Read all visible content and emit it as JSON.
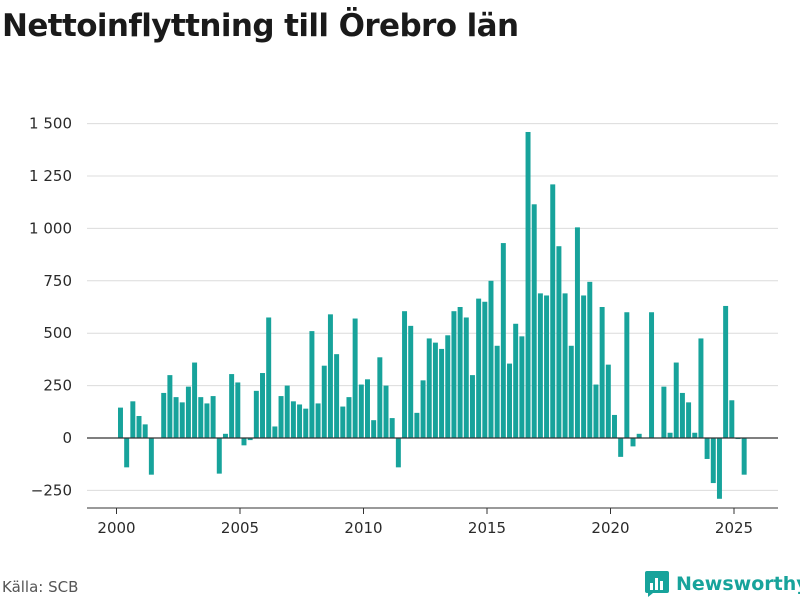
{
  "title": "Nettoinflyttning till Örebro län",
  "source": "Källa: SCB",
  "brand": {
    "name": "Newsworthy",
    "icon": "bar-chart-logo-icon"
  },
  "colors": {
    "bar": "#17a39b",
    "brand": "#17a39b",
    "grid": "#dcdcdc",
    "axis": "#333333"
  },
  "chart_data": {
    "type": "bar",
    "title": "Nettoinflyttning till Örebro län",
    "xlabel": "",
    "ylabel": "",
    "frequency": "quarterly",
    "start": "2000 Q1",
    "xlim": [
      1999.4,
      2026.8
    ],
    "ylim": [
      -300,
      1550
    ],
    "yticks": [
      -250,
      0,
      250,
      500,
      750,
      1000,
      1250,
      1500
    ],
    "ytick_labels": [
      "−250",
      "0",
      "250",
      "500",
      "750",
      "1 000",
      "1 250",
      "1 500"
    ],
    "xticks": [
      2000,
      2005,
      2010,
      2015,
      2020,
      2025
    ],
    "xtick_labels": [
      "2000",
      "2005",
      "2010",
      "2015",
      "2020",
      "2025"
    ],
    "grid": true,
    "legend": "none",
    "categories": [
      "2000 Q1",
      "2000 Q2",
      "2000 Q3",
      "2000 Q4",
      "2001 Q1",
      "2001 Q2",
      "2001 Q3",
      "2001 Q4",
      "2002 Q1",
      "2002 Q2",
      "2002 Q3",
      "2002 Q4",
      "2003 Q1",
      "2003 Q2",
      "2003 Q3",
      "2003 Q4",
      "2004 Q1",
      "2004 Q2",
      "2004 Q3",
      "2004 Q4",
      "2005 Q1",
      "2005 Q2",
      "2005 Q3",
      "2005 Q4",
      "2006 Q1",
      "2006 Q2",
      "2006 Q3",
      "2006 Q4",
      "2007 Q1",
      "2007 Q2",
      "2007 Q3",
      "2007 Q4",
      "2008 Q1",
      "2008 Q2",
      "2008 Q3",
      "2008 Q4",
      "2009 Q1",
      "2009 Q2",
      "2009 Q3",
      "2009 Q4",
      "2010 Q1",
      "2010 Q2",
      "2010 Q3",
      "2010 Q4",
      "2011 Q1",
      "2011 Q2",
      "2011 Q3",
      "2011 Q4",
      "2012 Q1",
      "2012 Q2",
      "2012 Q3",
      "2012 Q4",
      "2013 Q1",
      "2013 Q2",
      "2013 Q3",
      "2013 Q4",
      "2014 Q1",
      "2014 Q2",
      "2014 Q3",
      "2014 Q4",
      "2015 Q1",
      "2015 Q2",
      "2015 Q3",
      "2015 Q4",
      "2016 Q1",
      "2016 Q2",
      "2016 Q3",
      "2016 Q4",
      "2017 Q1",
      "2017 Q2",
      "2017 Q3",
      "2017 Q4",
      "2018 Q1",
      "2018 Q2",
      "2018 Q3",
      "2018 Q4",
      "2019 Q1",
      "2019 Q2",
      "2019 Q3",
      "2019 Q4",
      "2020 Q1",
      "2020 Q2",
      "2020 Q3",
      "2020 Q4",
      "2021 Q1",
      "2021 Q2",
      "2021 Q3",
      "2021 Q4",
      "2022 Q1",
      "2022 Q2",
      "2022 Q3",
      "2022 Q4",
      "2023 Q1",
      "2023 Q2",
      "2023 Q3",
      "2023 Q4",
      "2024 Q1",
      "2024 Q2",
      "2024 Q3",
      "2024 Q4",
      "2025 Q1",
      "2025 Q2",
      "2025 Q3"
    ],
    "values": [
      145,
      -140,
      175,
      105,
      65,
      -175,
      0,
      215,
      300,
      195,
      170,
      245,
      360,
      195,
      165,
      200,
      -170,
      20,
      305,
      265,
      -35,
      -10,
      225,
      310,
      575,
      55,
      200,
      250,
      175,
      160,
      140,
      510,
      165,
      345,
      590,
      400,
      150,
      195,
      570,
      255,
      280,
      85,
      385,
      250,
      95,
      -140,
      605,
      535,
      120,
      275,
      475,
      455,
      425,
      490,
      605,
      625,
      575,
      300,
      665,
      650,
      750,
      440,
      930,
      355,
      545,
      485,
      1460,
      1115,
      690,
      680,
      1210,
      915,
      690,
      440,
      1005,
      680,
      745,
      255,
      625,
      350,
      110,
      -90,
      600,
      -40,
      20,
      0,
      600,
      0,
      245,
      25,
      360,
      215,
      170,
      25,
      475,
      -100,
      -215,
      -290,
      630,
      180,
      -5,
      -175,
      0
    ]
  }
}
